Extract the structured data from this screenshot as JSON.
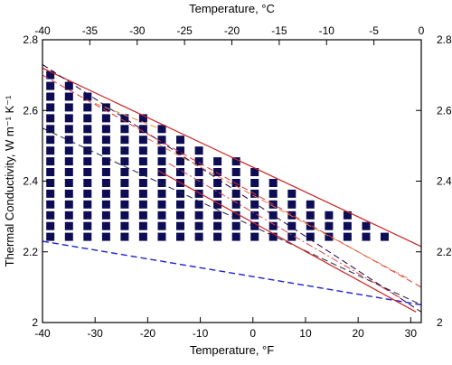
{
  "chart_data": {
    "type": "line",
    "title": "",
    "x_bottom": {
      "label": "Temperature, °F",
      "range": [
        -40,
        32
      ],
      "ticks": [
        -40,
        -30,
        -20,
        -10,
        0,
        10,
        20,
        30
      ],
      "tick_labels": [
        "-40",
        "-30",
        "-20",
        "-10",
        "0",
        "10",
        "20",
        "30"
      ]
    },
    "x_top": {
      "label": "Temperature, °C",
      "range": [
        -40,
        0
      ],
      "ticks": [
        -40,
        -35,
        -30,
        -25,
        -20,
        -15,
        -10,
        -5,
        0
      ],
      "tick_labels": [
        "-40",
        "-35",
        "-30",
        "-25",
        "-20",
        "-15",
        "-10",
        "-5",
        "0"
      ]
    },
    "y": {
      "label": "Thermal Conductivity, W m⁻¹ K⁻¹",
      "range": [
        2.0,
        2.8
      ],
      "ticks": [
        2.0,
        2.2,
        2.4,
        2.6,
        2.8
      ],
      "tick_labels": [
        "2",
        "2.2",
        "2.4",
        "2.6",
        "2.8"
      ]
    },
    "grid": false,
    "series": [
      {
        "x": [
          -40,
          32
        ],
        "y": [
          2.72,
          2.215
        ],
        "color": "#cc2222",
        "style": "solid",
        "width": 1.2
      },
      {
        "x": [
          -40,
          32
        ],
        "y": [
          2.73,
          2.03
        ],
        "color": "#220044",
        "style": "dash",
        "width": 1.0
      },
      {
        "x": [
          -40,
          32
        ],
        "y": [
          2.55,
          2.05
        ],
        "color": "#222244",
        "style": "dash",
        "width": 1.0
      },
      {
        "x": [
          -40,
          32
        ],
        "y": [
          2.23,
          2.05
        ],
        "color": "#1b22cc",
        "style": "dash",
        "width": 1.4
      },
      {
        "x": [
          -40,
          32
        ],
        "y": [
          2.7,
          2.1
        ],
        "color": "#dd3333",
        "style": "dash",
        "width": 1.0
      },
      {
        "x": [
          -18,
          31
        ],
        "y": [
          2.43,
          2.03
        ],
        "color": "#cc2222",
        "style": "solid",
        "width": 1.2
      },
      {
        "x": [
          -16,
          28
        ],
        "y": [
          2.45,
          2.07
        ],
        "color": "#dd4444",
        "style": "dashdot",
        "width": 1.0
      },
      {
        "x": [
          -20,
          30
        ],
        "y": [
          2.52,
          2.12
        ],
        "color": "#ee7744",
        "style": "dash",
        "width": 1.0
      },
      {
        "x": [
          -30,
          -18
        ],
        "y": [
          2.62,
          2.55
        ],
        "color": "#ee8844",
        "style": "dash",
        "width": 1.0
      }
    ],
    "marker_grid": {
      "color": "#0d0d55",
      "x_start": -38.5,
      "x_step": 3.53,
      "y_start": 2.7,
      "y_step": 0.0305,
      "rows": 16,
      "region": {
        "top_line": [
          [
            -40,
            2.72
          ],
          [
            32,
            2.215
          ]
        ],
        "bottom_line": [
          [
            -40,
            2.23
          ],
          [
            32,
            2.05
          ]
        ]
      }
    }
  }
}
